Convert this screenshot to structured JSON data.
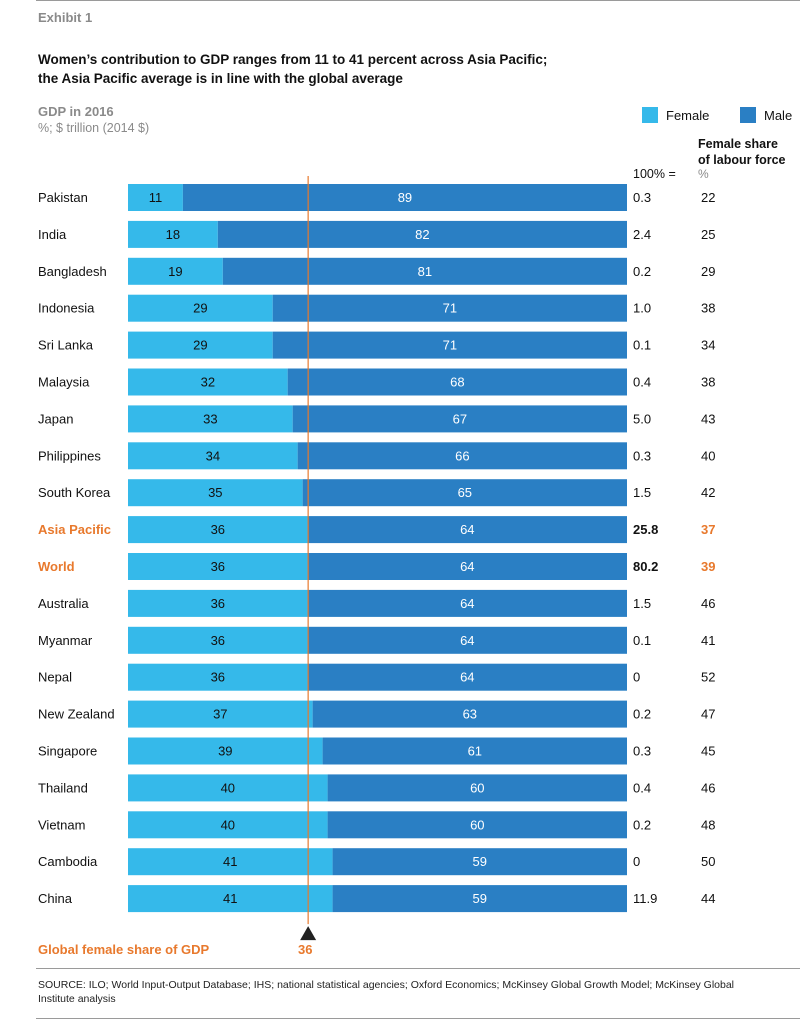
{
  "header": {
    "exhibit": "Exhibit 1",
    "title_line1": "Women’s contribution to GDP ranges from 11 to 41 percent across Asia Pacific;",
    "title_line2": "the Asia Pacific average is in line with the global average",
    "subtitle": "GDP in 2016",
    "units": "%; $ trillion (2014 $)"
  },
  "legend": {
    "female": "Female",
    "male": "Male"
  },
  "columns": {
    "total_head": "100% =",
    "share_head_line1": "Female share",
    "share_head_line2": "of labour force",
    "share_unit": "%"
  },
  "colors": {
    "female": "#35b9ea",
    "male": "#2a7fc4",
    "highlight": "#e8792d",
    "reference": "#e8792d"
  },
  "chart_data": {
    "type": "bar",
    "orientation": "horizontal",
    "stacked": true,
    "title": "Women’s contribution to GDP ranges from 11 to 41 percent across Asia Pacific; the Asia Pacific average is in line with the global average",
    "xlim": [
      0,
      100
    ],
    "categories": [
      "Pakistan",
      "India",
      "Bangladesh",
      "Indonesia",
      "Sri Lanka",
      "Malaysia",
      "Japan",
      "Philippines",
      "South Korea",
      "Asia Pacific",
      "World",
      "Australia",
      "Myanmar",
      "Nepal",
      "New Zealand",
      "Singapore",
      "Thailand",
      "Vietnam",
      "Cambodia",
      "China"
    ],
    "highlighted": [
      "Asia Pacific",
      "World"
    ],
    "series": [
      {
        "name": "Female",
        "values": [
          11,
          18,
          19,
          29,
          29,
          32,
          33,
          34,
          35,
          36,
          36,
          36,
          36,
          36,
          37,
          39,
          40,
          40,
          41,
          41
        ]
      },
      {
        "name": "Male",
        "values": [
          89,
          82,
          81,
          71,
          71,
          68,
          67,
          66,
          65,
          64,
          64,
          64,
          64,
          64,
          63,
          61,
          60,
          60,
          59,
          59
        ]
      }
    ],
    "gdp_total_trillion": [
      "0.3",
      "2.4",
      "0.2",
      "1.0",
      "0.1",
      "0.4",
      "5.0",
      "0.3",
      "1.5",
      "25.8",
      "80.2",
      "1.5",
      "0.1",
      "0",
      "0.2",
      "0.3",
      "0.4",
      "0.2",
      "0",
      "11.9"
    ],
    "female_labour_share_pct": [
      "22",
      "25",
      "29",
      "38",
      "34",
      "38",
      "43",
      "40",
      "42",
      "37",
      "39",
      "46",
      "41",
      "52",
      "47",
      "45",
      "46",
      "48",
      "50",
      "44"
    ],
    "reference_line": {
      "label": "Global female share of GDP",
      "value": 36
    }
  },
  "footer": {
    "source": "SOURCE:  ILO; World Input-Output Database; IHS; national statistical agencies; Oxford Economics; McKinsey Global Growth Model; McKinsey Global Institute analysis"
  }
}
